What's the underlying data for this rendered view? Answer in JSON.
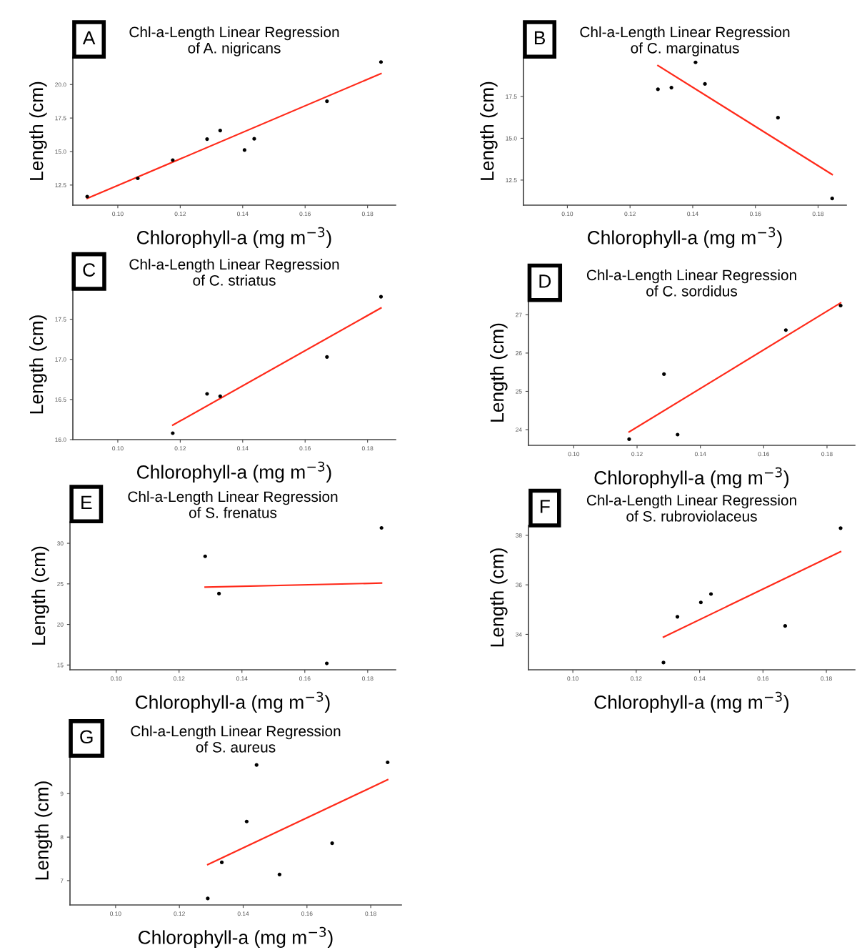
{
  "chart_data": [
    {
      "type": "scatter",
      "title": "Chl-a-Length Linear Regression\nof A. nigricans",
      "xlabel": "Chlorophyll-a (mg m$^{−3}$)",
      "ylabel": "Length (cm)",
      "annotations": [
        "A"
      ],
      "grid": false,
      "xlim": [
        0.0856,
        0.189
      ],
      "ylim": [
        11.0,
        22.04
      ],
      "xticks": [
        {
          "value": 0.1,
          "label": "0.10"
        },
        {
          "value": 0.12,
          "label": "0.12"
        },
        {
          "value": 0.14,
          "label": "0.14"
        },
        {
          "value": 0.16,
          "label": "0.16"
        },
        {
          "value": 0.18,
          "label": "0.18"
        }
      ],
      "yticks": [
        {
          "value": 12.5,
          "label": "12.5"
        },
        {
          "value": 15.0,
          "label": "15.0"
        },
        {
          "value": 17.5,
          "label": "17.5"
        },
        {
          "value": 20.0,
          "label": "20.0"
        }
      ],
      "series": [
        {
          "marker": "circle",
          "color": "#000000",
          "x": [
            0.0902,
            0.1064,
            0.1176,
            0.1286,
            0.1328,
            0.1406,
            0.1437,
            0.167,
            0.1843
          ],
          "values": [
            11.64,
            13.0,
            14.36,
            15.93,
            16.57,
            15.11,
            15.95,
            18.75,
            21.68
          ]
        },
        {
          "type": "line",
          "color": "#ff2a1a",
          "x": [
            0.0902,
            0.1843
          ],
          "values": [
            11.5,
            20.82
          ]
        }
      ]
    },
    {
      "type": "scatter",
      "title": "Chl-a-Length Linear Regression\nof C. marginatus",
      "xlabel": "Chlorophyll-a (mg m$^{−3}$)",
      "ylabel": "Length (cm)",
      "annotations": [
        "B"
      ],
      "grid": false,
      "xlim": [
        0.086,
        0.189
      ],
      "ylim": [
        11.0,
        19.85
      ],
      "xticks": [
        {
          "value": 0.1,
          "label": "0.10"
        },
        {
          "value": 0.12,
          "label": "0.12"
        },
        {
          "value": 0.14,
          "label": "0.14"
        },
        {
          "value": 0.16,
          "label": "0.16"
        },
        {
          "value": 0.18,
          "label": "0.18"
        }
      ],
      "yticks": [
        {
          "value": 12.5,
          "label": "12.5"
        },
        {
          "value": 15.0,
          "label": "15.0"
        },
        {
          "value": 17.5,
          "label": "17.5"
        }
      ],
      "series": [
        {
          "marker": "circle",
          "color": "#000000",
          "x": [
            0.1289,
            0.1332,
            0.1409,
            0.1439,
            0.1672,
            0.1845
          ],
          "values": [
            17.93,
            18.03,
            19.54,
            18.25,
            16.23,
            11.4
          ]
        },
        {
          "type": "line",
          "color": "#ff2a1a",
          "x": [
            0.1289,
            0.1845
          ],
          "values": [
            19.35,
            12.83
          ]
        }
      ]
    },
    {
      "type": "scatter",
      "title": "Chl-a-Length Linear Regression\nof C. striatus",
      "xlabel": "Chlorophyll-a (mg m$^{−3}$)",
      "ylabel": "Length (cm)",
      "annotations": [
        "C"
      ],
      "grid": false,
      "xlim": [
        0.0856,
        0.189
      ],
      "ylim": [
        16.0,
        17.87
      ],
      "xticks": [
        {
          "value": 0.1,
          "label": "0.10"
        },
        {
          "value": 0.12,
          "label": "0.12"
        },
        {
          "value": 0.14,
          "label": "0.14"
        },
        {
          "value": 0.16,
          "label": "0.16"
        },
        {
          "value": 0.18,
          "label": "0.18"
        }
      ],
      "yticks": [
        {
          "value": 16.0,
          "label": "16.0"
        },
        {
          "value": 16.5,
          "label": "16.5"
        },
        {
          "value": 17.0,
          "label": "17.0"
        },
        {
          "value": 17.5,
          "label": "17.5"
        }
      ],
      "series": [
        {
          "marker": "circle",
          "color": "#000000",
          "x": [
            0.1176,
            0.1286,
            0.1328,
            0.167,
            0.1843
          ],
          "values": [
            16.08,
            16.57,
            16.54,
            17.03,
            17.78
          ]
        },
        {
          "type": "line",
          "color": "#ff2a1a",
          "x": [
            0.1176,
            0.1843
          ],
          "values": [
            16.18,
            17.64
          ]
        }
      ]
    },
    {
      "type": "scatter",
      "title": "Chl-a-Length Linear Regression\nof C. sordidus",
      "xlabel": "Chlorophyll-a (mg m$^{−3}$)",
      "ylabel": "Length (cm)",
      "annotations": [
        "D"
      ],
      "grid": false,
      "xlim": [
        0.0857,
        0.1888
      ],
      "ylim": [
        23.59,
        27.38
      ],
      "xticks": [
        {
          "value": 0.1,
          "label": "0.10"
        },
        {
          "value": 0.12,
          "label": "0.12"
        },
        {
          "value": 0.14,
          "label": "0.14"
        },
        {
          "value": 0.16,
          "label": "0.16"
        },
        {
          "value": 0.18,
          "label": "0.18"
        }
      ],
      "yticks": [
        24,
        25,
        26,
        27
      ],
      "series": [
        {
          "marker": "circle",
          "color": "#000000",
          "x": [
            0.1175,
            0.1285,
            0.1328,
            0.167,
            0.1843
          ],
          "values": [
            23.75,
            25.45,
            23.87,
            26.6,
            27.24
          ]
        },
        {
          "type": "line",
          "color": "#ff2a1a",
          "x": [
            0.1175,
            0.1843
          ],
          "values": [
            23.94,
            27.31
          ]
        }
      ]
    },
    {
      "type": "scatter",
      "title": "Chl-a-Length Linear Regression\nof S. frenatus",
      "xlabel": "Chlorophyll-a (mg m$^{−3}$)",
      "ylabel": "Length (cm)",
      "annotations": [
        "E"
      ],
      "grid": false,
      "xlim": [
        0.0853,
        0.1889
      ],
      "ylim": [
        14.41,
        32.65
      ],
      "xticks": [
        {
          "value": 0.1,
          "label": "0.10"
        },
        {
          "value": 0.12,
          "label": "0.12"
        },
        {
          "value": 0.14,
          "label": "0.14"
        },
        {
          "value": 0.16,
          "label": "0.16"
        },
        {
          "value": 0.18,
          "label": "0.18"
        }
      ],
      "yticks": [
        15,
        20,
        25,
        30
      ],
      "series": [
        {
          "marker": "circle",
          "color": "#000000",
          "x": [
            0.1283,
            0.1327,
            0.167,
            0.1844
          ],
          "values": [
            28.4,
            23.8,
            15.2,
            31.9
          ]
        },
        {
          "type": "line",
          "color": "#ff2a1a",
          "x": [
            0.1283,
            0.1844
          ],
          "values": [
            24.6,
            25.1
          ]
        }
      ]
    },
    {
      "type": "scatter",
      "title": "Chl-a-Length Linear Regression\nof S. rubroviolaceus",
      "xlabel": "Chlorophyll-a (mg m$^{−3}$)",
      "ylabel": "Length (cm)",
      "annotations": [
        "F"
      ],
      "grid": false,
      "xlim": [
        0.086,
        0.189
      ],
      "ylim": [
        32.57,
        38.4
      ],
      "xticks": [
        {
          "value": 0.1,
          "label": "0.10"
        },
        {
          "value": 0.12,
          "label": "0.12"
        },
        {
          "value": 0.14,
          "label": "0.14"
        },
        {
          "value": 0.16,
          "label": "0.16"
        },
        {
          "value": 0.18,
          "label": "0.18"
        }
      ],
      "yticks": [
        34,
        36,
        38
      ],
      "series": [
        {
          "marker": "circle",
          "color": "#000000",
          "x": [
            0.1286,
            0.133,
            0.1404,
            0.1436,
            0.167,
            0.1845
          ],
          "values": [
            32.86,
            34.71,
            35.29,
            35.63,
            34.34,
            38.29
          ]
        },
        {
          "type": "line",
          "color": "#ff2a1a",
          "x": [
            0.1286,
            0.1845
          ],
          "values": [
            33.89,
            37.34
          ]
        }
      ]
    },
    {
      "type": "scatter",
      "title": "Chl-a-Length Linear Regression\nof S. aureus",
      "xlabel": "Chlorophyll-a (mg m$^{−3}$)",
      "ylabel": "Length (cm)",
      "annotations": [
        "G"
      ],
      "grid": false,
      "xlim": [
        0.0857,
        0.1896
      ],
      "ylim": [
        6.44,
        9.86
      ],
      "xticks": [
        {
          "value": 0.1,
          "label": "0.10"
        },
        {
          "value": 0.12,
          "label": "0.12"
        },
        {
          "value": 0.14,
          "label": "0.14"
        },
        {
          "value": 0.16,
          "label": "0.16"
        },
        {
          "value": 0.18,
          "label": "0.18"
        }
      ],
      "yticks": [
        7,
        8,
        9
      ],
      "series": [
        {
          "marker": "circle",
          "color": "#000000",
          "x": [
            0.1289,
            0.1333,
            0.1411,
            0.1442,
            0.1514,
            0.1679,
            0.1853
          ],
          "values": [
            6.59,
            7.42,
            8.36,
            9.66,
            7.14,
            7.86,
            9.72
          ]
        },
        {
          "type": "line",
          "color": "#ff2a1a",
          "x": [
            0.1289,
            0.1853
          ],
          "values": [
            7.37,
            9.32
          ]
        }
      ]
    }
  ]
}
